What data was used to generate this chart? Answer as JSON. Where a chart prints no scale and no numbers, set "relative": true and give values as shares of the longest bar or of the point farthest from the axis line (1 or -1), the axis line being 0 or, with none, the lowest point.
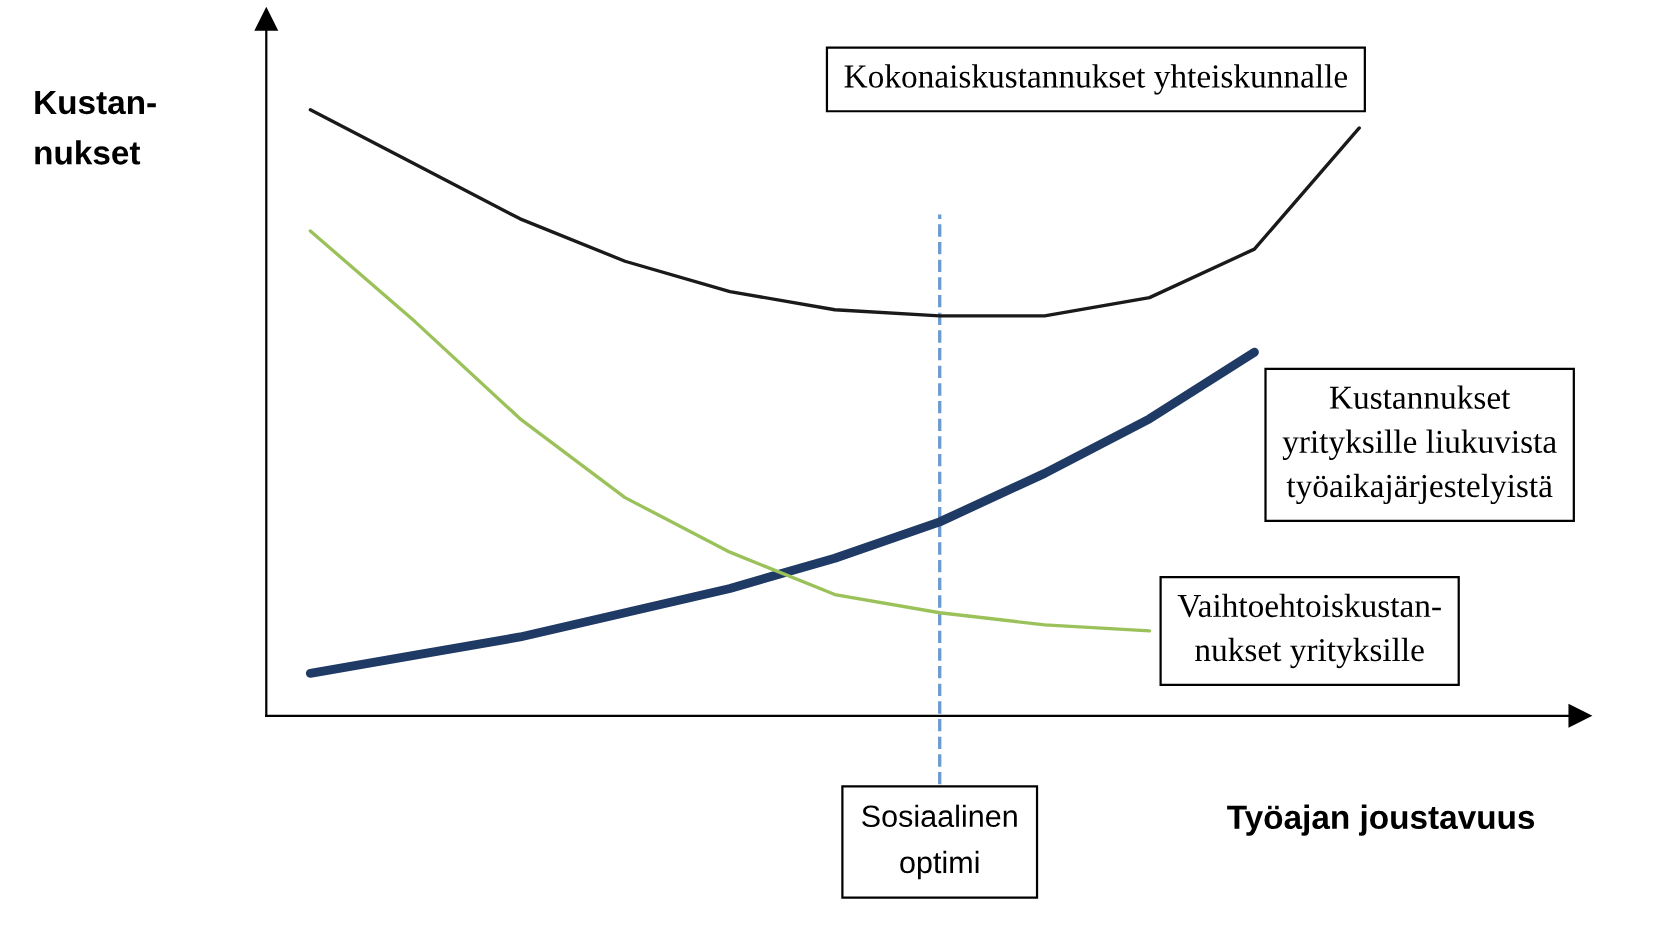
{
  "chart_data": {
    "type": "line",
    "relative": true,
    "xlabel": "Työajan joustavuus",
    "ylabel": "Kustan-\nnukset",
    "marker": "none",
    "line_style": "solid",
    "categories": [
      null,
      null,
      null,
      null,
      null,
      null,
      null,
      null,
      null,
      null,
      null
    ],
    "series": [
      {
        "name": "Kokonaiskustannukset yhteiskunnalle",
        "color": "#1a1a1a",
        "values": [
          1.0,
          0.91,
          0.82,
          0.75,
          0.7,
          0.67,
          0.66,
          0.66,
          0.69,
          0.77,
          0.97
        ]
      },
      {
        "name": "Kustannukset\nyrityksille liukuvista\ntyöaikajärjestelyistä",
        "color": "#1f3a64",
        "values": [
          0.07,
          0.1,
          0.13,
          0.17,
          0.21,
          0.26,
          0.32,
          0.4,
          0.49,
          0.6,
          null
        ]
      },
      {
        "name": "Vaihtoehtoiskustan-\nnukset yrityksille",
        "color": "#9bc25a",
        "values": [
          0.8,
          0.65,
          0.49,
          0.36,
          0.27,
          0.2,
          0.17,
          0.15,
          0.14,
          null,
          null
        ]
      }
    ],
    "annotations": [
      "Sosiaalinen\noptimi"
    ]
  }
}
